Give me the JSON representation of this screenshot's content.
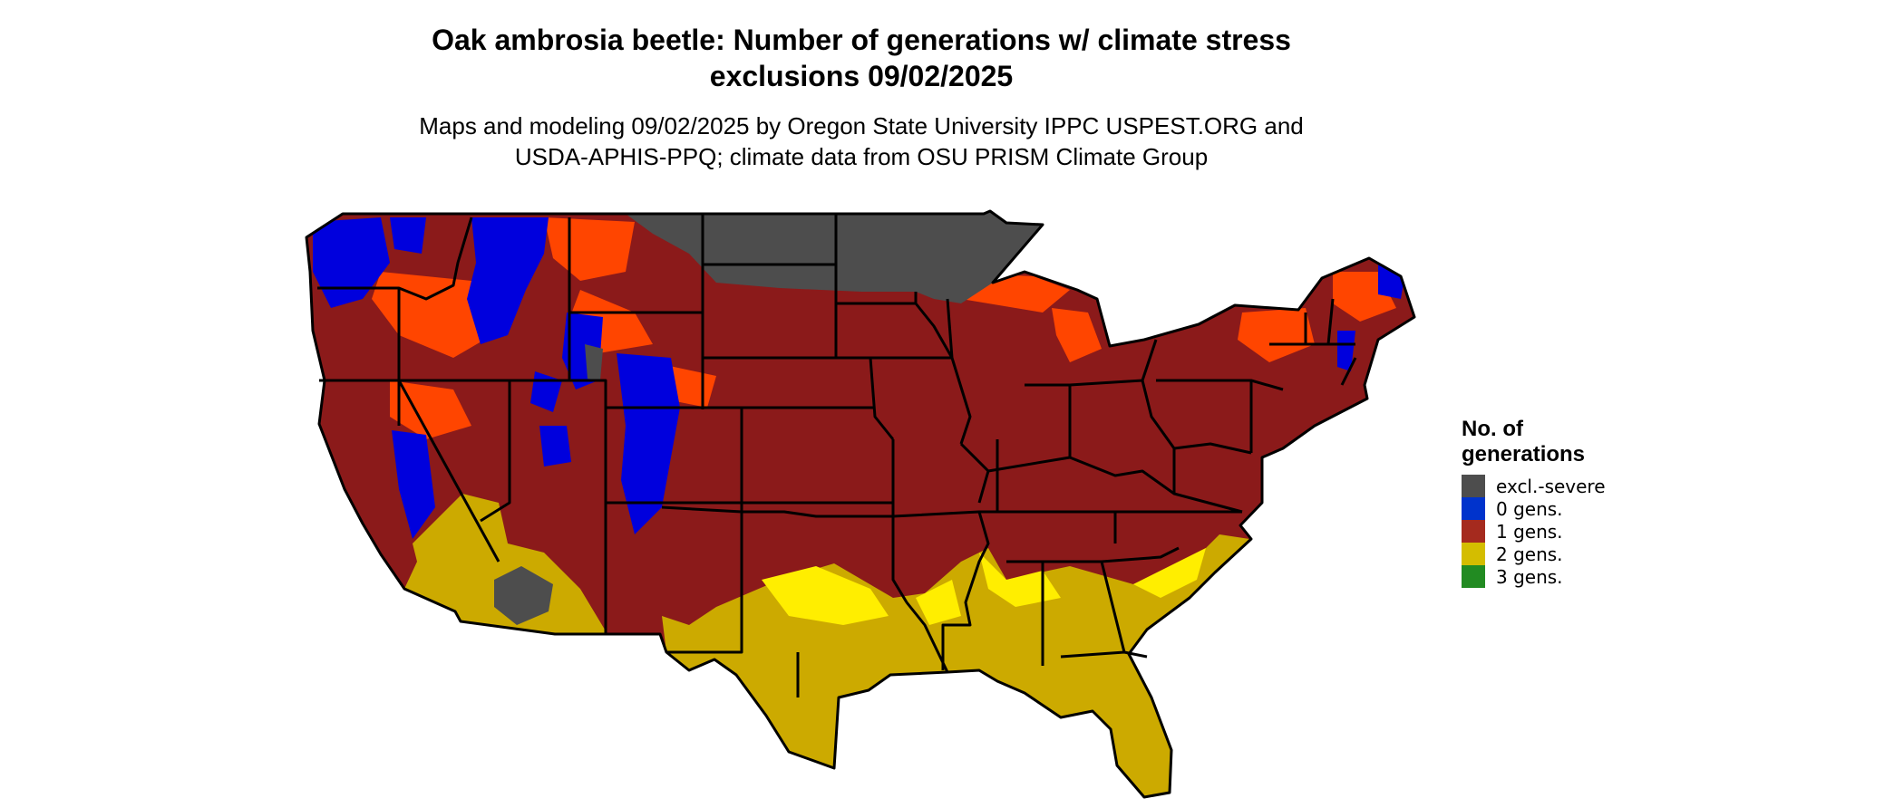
{
  "header": {
    "title_line1": "Oak ambrosia beetle: Number of generations w/ climate stress",
    "title_line2": "exclusions 09/02/2025",
    "subtitle_line1": "Maps and modeling 09/02/2025 by Oregon State University IPPC USPEST.ORG and",
    "subtitle_line2": "USDA-APHIS-PPQ; climate data from OSU PRISM Climate Group"
  },
  "legend": {
    "title_line1": "No. of",
    "title_line2": "generations",
    "items": [
      {
        "label": "excl.-severe",
        "color": "#4d4d4d"
      },
      {
        "label": "0 gens.",
        "color": "#0033cc"
      },
      {
        "label": "1 gens.",
        "color": "#a52a1e"
      },
      {
        "label": "2 gens.",
        "color": "#d4bd00"
      },
      {
        "label": "3 gens.",
        "color": "#228b22"
      }
    ]
  },
  "map_colors": {
    "excluded": "#4d4d4d",
    "zero_gens": "#0000dd",
    "one_gen": "#8b1a1a",
    "one_gen_high": "#ff4500",
    "two_gens": "#ccaa00",
    "two_gens_bright": "#ffee00",
    "three_gens": "#33cc33",
    "borders": "#000000"
  }
}
